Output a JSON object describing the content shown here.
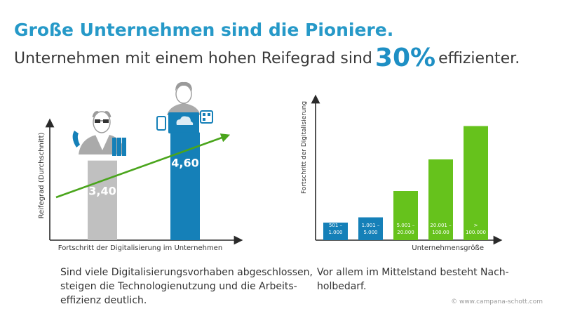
{
  "header": {
    "title": "Große Unternehmen sind die Pioniere.",
    "subtitle_before": "Unternehmen mit einem hohen Reifegrad sind",
    "subtitle_highlight": "30%",
    "subtitle_after": "effizienter."
  },
  "chart_data": [
    {
      "type": "bar",
      "categories": [
        "",
        ""
      ],
      "values": [
        3.4,
        4.6
      ],
      "value_labels": [
        "3,40",
        "4,60"
      ],
      "xlabel": "Fortschritt der Digitalisierung im Unternehmen",
      "ylabel": "Reifegrad (Durchschnitt)",
      "ylim": [
        0,
        6
      ],
      "colors": [
        "#c0c0c0",
        "#1580b8"
      ],
      "trend_color": "#4aa51c",
      "grid": false
    },
    {
      "type": "bar",
      "categories": [
        "501 –\n1.000",
        "1.001 –\n5.000",
        "5.001 –\n20.000",
        "20.001 –\n100.00",
        ">\n100.000"
      ],
      "values": [
        1,
        1.3,
        2.8,
        4.6,
        6.5
      ],
      "xlabel": "Unternehmensgröße",
      "ylabel": "Fortschritt der Digitalisierung",
      "ylim": [
        0,
        8
      ],
      "colors": [
        "#1580b8",
        "#1580b8",
        "#66c21c",
        "#66c21c",
        "#66c21c"
      ],
      "grid": false
    }
  ],
  "captions": {
    "left": [
      "Sind viele Digitalisierungsvorhaben abgeschlossen,",
      "steigen die Technologienutzung und die Arbeits-",
      "effizienz deutlich."
    ],
    "right": [
      "Vor allem im  Mittelstand besteht Nach-",
      "holbedarf."
    ]
  },
  "copyright": "© www.campana-schott.com"
}
